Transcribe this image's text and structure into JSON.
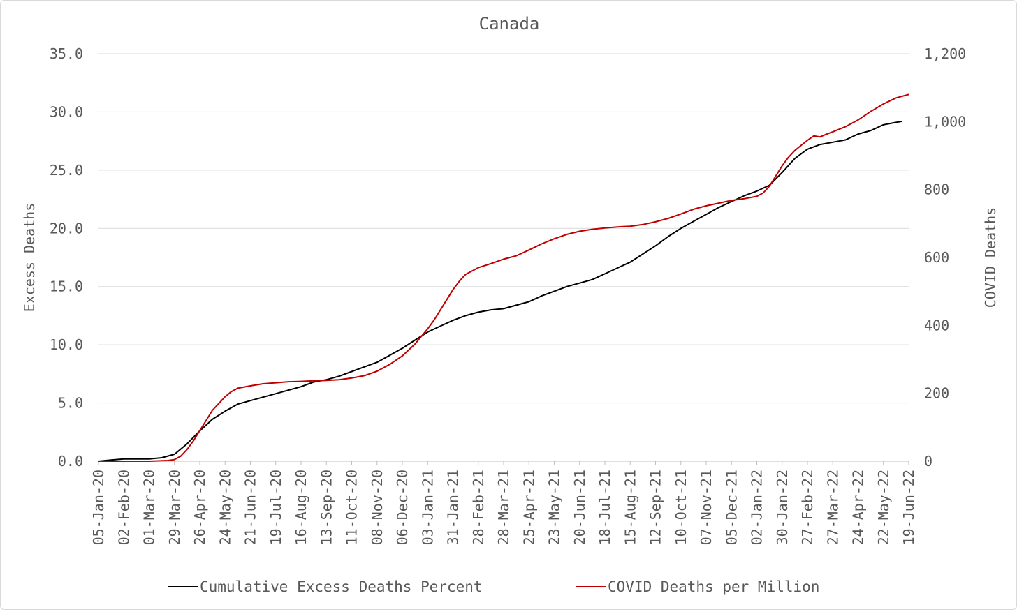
{
  "chart_data": {
    "type": "line",
    "title": "Canada",
    "y_left": {
      "label": "Excess Deaths",
      "range": [
        0,
        35
      ],
      "ticks": [
        "0.0",
        "5.0",
        "10.0",
        "15.0",
        "20.0",
        "25.0",
        "30.0",
        "35.0"
      ]
    },
    "y_right": {
      "label": "COVID Deaths",
      "range": [
        0,
        1200
      ],
      "ticks": [
        "0",
        "200",
        "400",
        "600",
        "800",
        "1,000",
        "1,200"
      ]
    },
    "x": {
      "range": [
        "2020-01-05",
        "2022-06-19"
      ],
      "tick_labels": [
        "05-Jan-20",
        "02-Feb-20",
        "01-Mar-20",
        "29-Mar-20",
        "26-Apr-20",
        "24-May-20",
        "21-Jun-20",
        "19-Jul-20",
        "16-Aug-20",
        "13-Sep-20",
        "11-Oct-20",
        "08-Nov-20",
        "06-Dec-20",
        "03-Jan-21",
        "31-Jan-21",
        "28-Feb-21",
        "28-Mar-21",
        "25-Apr-21",
        "23-May-21",
        "20-Jun-21",
        "18-Jul-21",
        "15-Aug-21",
        "12-Sep-21",
        "10-Oct-21",
        "07-Nov-21",
        "05-Dec-21",
        "02-Jan-22",
        "30-Jan-22",
        "27-Feb-22",
        "27-Mar-22",
        "24-Apr-22",
        "22-May-22",
        "19-Jun-22"
      ]
    },
    "grid": true,
    "legend_position": "bottom",
    "series": [
      {
        "name": "Cumulative Excess Deaths Percent",
        "axis": "left",
        "color": "#000000",
        "points": [
          [
            "2020-01-05",
            0.0
          ],
          [
            "2020-01-19",
            0.1
          ],
          [
            "2020-02-02",
            0.2
          ],
          [
            "2020-02-16",
            0.2
          ],
          [
            "2020-03-01",
            0.2
          ],
          [
            "2020-03-15",
            0.3
          ],
          [
            "2020-03-29",
            0.6
          ],
          [
            "2020-04-12",
            1.5
          ],
          [
            "2020-04-26",
            2.6
          ],
          [
            "2020-05-10",
            3.6
          ],
          [
            "2020-05-24",
            4.3
          ],
          [
            "2020-06-07",
            4.9
          ],
          [
            "2020-06-21",
            5.2
          ],
          [
            "2020-07-05",
            5.5
          ],
          [
            "2020-07-19",
            5.8
          ],
          [
            "2020-08-02",
            6.1
          ],
          [
            "2020-08-16",
            6.4
          ],
          [
            "2020-08-30",
            6.8
          ],
          [
            "2020-09-13",
            7.0
          ],
          [
            "2020-09-27",
            7.3
          ],
          [
            "2020-10-11",
            7.7
          ],
          [
            "2020-10-25",
            8.1
          ],
          [
            "2020-11-08",
            8.5
          ],
          [
            "2020-11-22",
            9.1
          ],
          [
            "2020-12-06",
            9.7
          ],
          [
            "2020-12-20",
            10.4
          ],
          [
            "2021-01-03",
            11.1
          ],
          [
            "2021-01-17",
            11.6
          ],
          [
            "2021-01-31",
            12.1
          ],
          [
            "2021-02-14",
            12.5
          ],
          [
            "2021-02-28",
            12.8
          ],
          [
            "2021-03-14",
            13.0
          ],
          [
            "2021-03-28",
            13.1
          ],
          [
            "2021-04-11",
            13.4
          ],
          [
            "2021-04-25",
            13.7
          ],
          [
            "2021-05-09",
            14.2
          ],
          [
            "2021-05-23",
            14.6
          ],
          [
            "2021-06-06",
            15.0
          ],
          [
            "2021-06-20",
            15.3
          ],
          [
            "2021-07-04",
            15.6
          ],
          [
            "2021-07-18",
            16.1
          ],
          [
            "2021-08-01",
            16.6
          ],
          [
            "2021-08-15",
            17.1
          ],
          [
            "2021-08-29",
            17.8
          ],
          [
            "2021-09-12",
            18.5
          ],
          [
            "2021-09-26",
            19.3
          ],
          [
            "2021-10-10",
            20.0
          ],
          [
            "2021-10-24",
            20.6
          ],
          [
            "2021-11-07",
            21.2
          ],
          [
            "2021-11-21",
            21.8
          ],
          [
            "2021-12-05",
            22.3
          ],
          [
            "2021-12-19",
            22.8
          ],
          [
            "2022-01-02",
            23.2
          ],
          [
            "2022-01-16",
            23.7
          ],
          [
            "2022-01-30",
            24.8
          ],
          [
            "2022-02-13",
            26.0
          ],
          [
            "2022-02-27",
            26.8
          ],
          [
            "2022-03-13",
            27.2
          ],
          [
            "2022-03-27",
            27.4
          ],
          [
            "2022-04-10",
            27.6
          ],
          [
            "2022-04-24",
            28.1
          ],
          [
            "2022-05-08",
            28.4
          ],
          [
            "2022-05-22",
            28.9
          ],
          [
            "2022-06-05",
            29.1
          ],
          [
            "2022-06-12",
            29.2
          ]
        ]
      },
      {
        "name": "COVID Deaths per Million",
        "axis": "right",
        "color": "#c00000",
        "points": [
          [
            "2020-01-05",
            0
          ],
          [
            "2020-02-02",
            0
          ],
          [
            "2020-03-01",
            0
          ],
          [
            "2020-03-22",
            2
          ],
          [
            "2020-03-29",
            5
          ],
          [
            "2020-04-05",
            15
          ],
          [
            "2020-04-12",
            35
          ],
          [
            "2020-04-19",
            60
          ],
          [
            "2020-04-26",
            90
          ],
          [
            "2020-05-03",
            120
          ],
          [
            "2020-05-10",
            150
          ],
          [
            "2020-05-17",
            170
          ],
          [
            "2020-05-24",
            190
          ],
          [
            "2020-05-31",
            205
          ],
          [
            "2020-06-07",
            215
          ],
          [
            "2020-06-21",
            222
          ],
          [
            "2020-07-05",
            228
          ],
          [
            "2020-07-19",
            231
          ],
          [
            "2020-08-02",
            234
          ],
          [
            "2020-08-16",
            235
          ],
          [
            "2020-08-30",
            237
          ],
          [
            "2020-09-13",
            238
          ],
          [
            "2020-09-27",
            240
          ],
          [
            "2020-10-11",
            245
          ],
          [
            "2020-10-25",
            252
          ],
          [
            "2020-11-08",
            265
          ],
          [
            "2020-11-22",
            285
          ],
          [
            "2020-12-06",
            310
          ],
          [
            "2020-12-20",
            345
          ],
          [
            "2021-01-03",
            390
          ],
          [
            "2021-01-10",
            415
          ],
          [
            "2021-01-17",
            445
          ],
          [
            "2021-01-24",
            475
          ],
          [
            "2021-01-31",
            505
          ],
          [
            "2021-02-07",
            530
          ],
          [
            "2021-02-14",
            550
          ],
          [
            "2021-02-28",
            570
          ],
          [
            "2021-03-14",
            582
          ],
          [
            "2021-03-28",
            595
          ],
          [
            "2021-04-11",
            605
          ],
          [
            "2021-04-25",
            622
          ],
          [
            "2021-05-09",
            640
          ],
          [
            "2021-05-23",
            655
          ],
          [
            "2021-06-06",
            668
          ],
          [
            "2021-06-20",
            677
          ],
          [
            "2021-07-04",
            683
          ],
          [
            "2021-07-18",
            687
          ],
          [
            "2021-08-01",
            690
          ],
          [
            "2021-08-15",
            692
          ],
          [
            "2021-08-29",
            697
          ],
          [
            "2021-09-12",
            705
          ],
          [
            "2021-09-26",
            715
          ],
          [
            "2021-10-10",
            728
          ],
          [
            "2021-10-24",
            742
          ],
          [
            "2021-11-07",
            752
          ],
          [
            "2021-11-21",
            760
          ],
          [
            "2021-12-05",
            768
          ],
          [
            "2021-12-19",
            773
          ],
          [
            "2022-01-02",
            780
          ],
          [
            "2022-01-09",
            790
          ],
          [
            "2022-01-16",
            810
          ],
          [
            "2022-01-23",
            840
          ],
          [
            "2022-01-30",
            870
          ],
          [
            "2022-02-06",
            895
          ],
          [
            "2022-02-13",
            915
          ],
          [
            "2022-02-20",
            930
          ],
          [
            "2022-02-27",
            945
          ],
          [
            "2022-03-06",
            958
          ],
          [
            "2022-03-13",
            955
          ],
          [
            "2022-03-20",
            963
          ],
          [
            "2022-03-27",
            970
          ],
          [
            "2022-04-10",
            985
          ],
          [
            "2022-04-24",
            1005
          ],
          [
            "2022-05-08",
            1030
          ],
          [
            "2022-05-22",
            1052
          ],
          [
            "2022-06-05",
            1070
          ],
          [
            "2022-06-19",
            1080
          ]
        ]
      }
    ]
  }
}
